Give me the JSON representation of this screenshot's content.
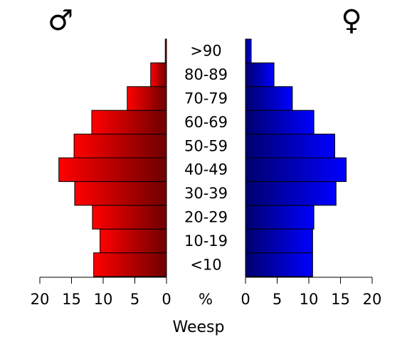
{
  "chart_data": {
    "type": "bar",
    "orientation": "horizontal",
    "layout": "population-pyramid",
    "categories": [
      "<10",
      "10-19",
      "20-29",
      "30-39",
      "40-49",
      "50-59",
      "60-69",
      "70-79",
      "80-89",
      ">90"
    ],
    "series": [
      {
        "name": "♂",
        "side": "left",
        "color_dark": "#6e0000",
        "color_light": "#ff0000",
        "values": [
          11.5,
          10.5,
          11.7,
          14.5,
          17.0,
          14.6,
          11.8,
          6.2,
          2.5,
          0.2
        ]
      },
      {
        "name": "♀",
        "side": "right",
        "color_dark": "#00006e",
        "color_light": "#0000ff",
        "values": [
          10.6,
          10.6,
          10.8,
          14.3,
          15.9,
          14.1,
          10.8,
          7.4,
          4.5,
          0.9
        ]
      }
    ],
    "xlim": [
      0,
      20
    ],
    "x_ticks": [
      0,
      5,
      10,
      15,
      20
    ],
    "x_tick_labels_left": [
      "20",
      "15",
      "10",
      "5",
      "0"
    ],
    "x_tick_labels_right": [
      "0",
      "5",
      "10",
      "15",
      "20"
    ],
    "center_unit_label": "%",
    "xlabel": "Weesp",
    "grid": false,
    "legend": "symbols above each half (top-left ♂, top-right ♀)"
  }
}
